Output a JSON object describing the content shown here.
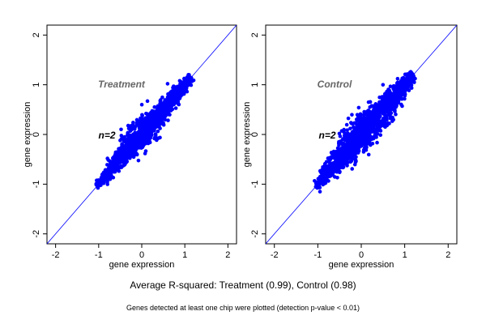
{
  "chart_data": [
    {
      "type": "scatter",
      "panel": "Treatment",
      "xlabel": "gene expression",
      "ylabel": "gene expression",
      "xlim": [
        -2.2,
        2.2
      ],
      "ylim": [
        -2.2,
        2.2
      ],
      "x_ticks": [
        -2,
        -1,
        0,
        1,
        2
      ],
      "y_ticks": [
        -2,
        -1,
        0,
        1,
        2
      ],
      "x_tick_labels": [
        "-2",
        "-1",
        "0",
        "1",
        "2"
      ],
      "y_tick_labels": [
        "-2",
        "-1",
        "0",
        "1",
        "2"
      ],
      "annotations": {
        "group": "Treatment",
        "n": "n=2"
      },
      "reference_line": {
        "slope": 1,
        "intercept": 0
      },
      "point_color": "#0000ff",
      "line_color": "#0000ff",
      "grid": false,
      "cloud": {
        "x_range": [
          -1.05,
          1.15
        ],
        "diagonal_spread": [
          0.03,
          0.09,
          0.13,
          0.15,
          0.12,
          0.09,
          0.05
        ],
        "count": 1400,
        "outliers": [
          [
            -0.5,
            -0.12
          ],
          [
            -0.4,
            -0.05
          ],
          [
            -0.3,
            0.12
          ],
          [
            0.6,
            1.02
          ],
          [
            -0.95,
            -1.02
          ]
        ]
      }
    },
    {
      "type": "scatter",
      "panel": "Control",
      "xlabel": "gene expression",
      "ylabel": "gene expression",
      "xlim": [
        -2.2,
        2.2
      ],
      "ylim": [
        -2.2,
        2.2
      ],
      "x_ticks": [
        -2,
        -1,
        0,
        1,
        2
      ],
      "y_ticks": [
        -2,
        -1,
        0,
        1,
        2
      ],
      "x_tick_labels": [
        "-2",
        "-1",
        "0",
        "1",
        "2"
      ],
      "y_tick_labels": [
        "-2",
        "-1",
        "0",
        "1",
        "2"
      ],
      "annotations": {
        "group": "Control",
        "n": "n=2"
      },
      "reference_line": {
        "slope": 1,
        "intercept": 0
      },
      "point_color": "#0000ff",
      "line_color": "#0000ff",
      "grid": false,
      "cloud": {
        "x_range": [
          -1.05,
          1.2
        ],
        "diagonal_spread": [
          0.04,
          0.11,
          0.17,
          0.2,
          0.16,
          0.11,
          0.05
        ],
        "count": 1600,
        "outliers": [
          [
            -0.4,
            0.05
          ],
          [
            -0.8,
            -0.55
          ],
          [
            0.5,
            1.0
          ],
          [
            0.2,
            0.55
          ],
          [
            -0.95,
            -1.15
          ]
        ]
      }
    }
  ],
  "captions": {
    "main": "Average R-squared: Treatment (0.99), Control (0.98)",
    "footnote": "Genes detected at least one chip were plotted (detection p-value < 0.01)"
  }
}
